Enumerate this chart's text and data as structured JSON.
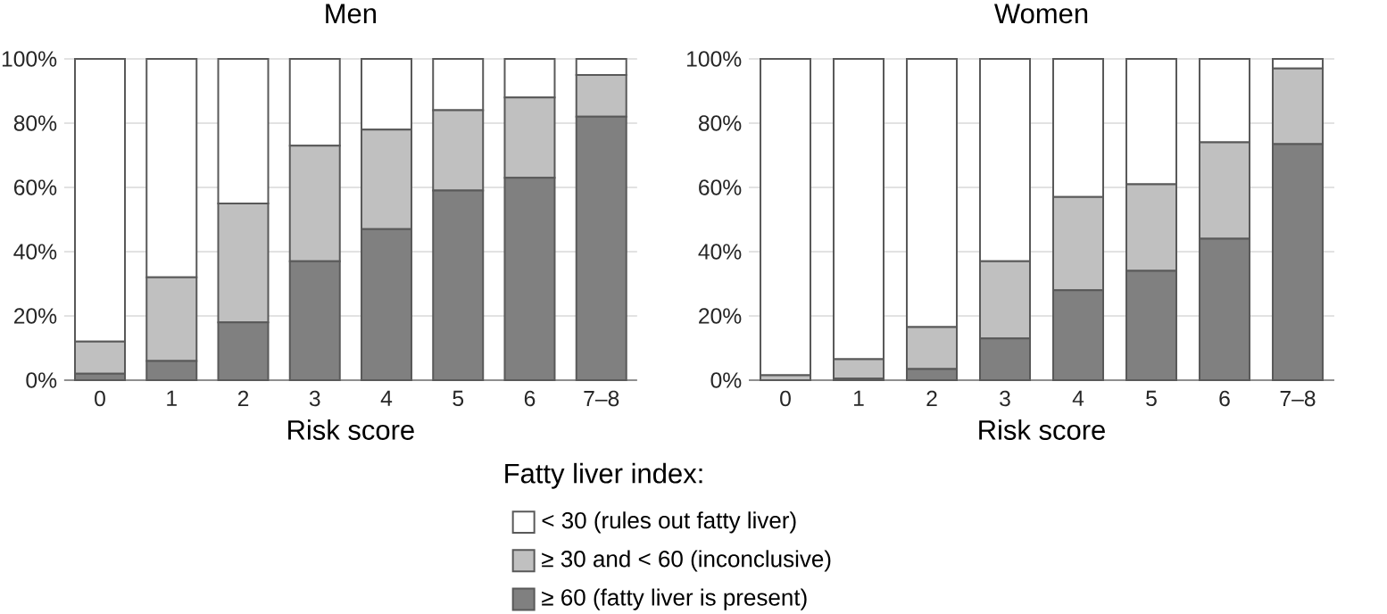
{
  "chart_data": [
    {
      "type": "bar",
      "title": "Men",
      "xlabel": "Risk score",
      "stacked": true,
      "grid": "y",
      "legend": "bottom",
      "legend_title": "Fatty liver index:",
      "categories": [
        "0",
        "1",
        "2",
        "3",
        "4",
        "5",
        "6",
        "7–8"
      ],
      "ylim": [
        0,
        100
      ],
      "yticks": [
        {
          "value": 0,
          "label": "0%"
        },
        {
          "value": 20,
          "label": "20%"
        },
        {
          "value": 40,
          "label": "40%"
        },
        {
          "value": 60,
          "label": "60%"
        },
        {
          "value": 80,
          "label": "80%"
        },
        {
          "value": 100,
          "label": "100%"
        }
      ],
      "series": [
        {
          "name": "≥ 60 (fatty liver is present)",
          "color": "#808080",
          "values": [
            2,
            6,
            18,
            37,
            47,
            59,
            63,
            82
          ]
        },
        {
          "name": "≥ 30 and < 60 (inconclusive)",
          "color": "#c0c0c0",
          "values": [
            10,
            26,
            37,
            36,
            31,
            25,
            25,
            13
          ]
        },
        {
          "name": "< 30 (rules out fatty liver)",
          "color": "#ffffff",
          "values": [
            88,
            68,
            45,
            27,
            22,
            16,
            12,
            5
          ]
        }
      ]
    },
    {
      "type": "bar",
      "title": "Women",
      "xlabel": "Risk score",
      "stacked": true,
      "grid": "y",
      "categories": [
        "0",
        "1",
        "2",
        "3",
        "4",
        "5",
        "6",
        "7–8"
      ],
      "ylim": [
        0,
        100
      ],
      "yticks": [
        {
          "value": 0,
          "label": "0%"
        },
        {
          "value": 20,
          "label": "20%"
        },
        {
          "value": 40,
          "label": "40%"
        },
        {
          "value": 60,
          "label": "60%"
        },
        {
          "value": 80,
          "label": "80%"
        },
        {
          "value": 100,
          "label": "100%"
        }
      ],
      "series": [
        {
          "color": "#808080",
          "values": [
            0,
            0.5,
            3.5,
            13,
            28,
            34,
            44,
            73.5
          ]
        },
        {
          "color": "#c0c0c0",
          "values": [
            1.5,
            6,
            13,
            24,
            29,
            27,
            30,
            23.5
          ]
        },
        {
          "color": "#ffffff",
          "values": [
            98.5,
            93.5,
            83.5,
            63,
            43,
            39,
            26,
            3
          ]
        }
      ]
    }
  ]
}
